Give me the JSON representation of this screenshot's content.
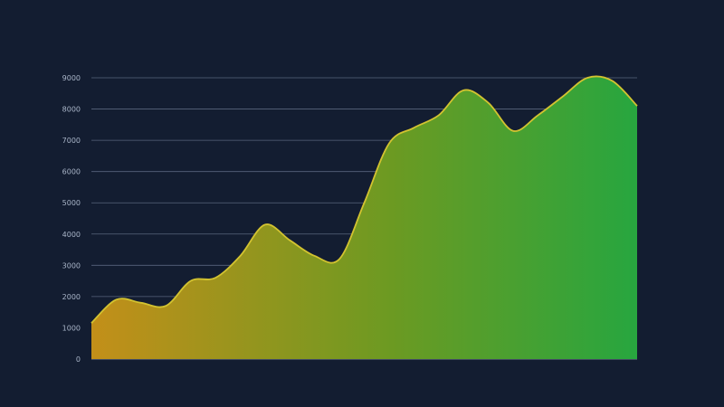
{
  "chart_data": {
    "type": "area",
    "title": "",
    "xlabel": "",
    "ylabel": "",
    "x": [
      0,
      1,
      2,
      3,
      4,
      5,
      6,
      7,
      8,
      9,
      10,
      11,
      12,
      13,
      14,
      15,
      16,
      17,
      18,
      19,
      20,
      21,
      22
    ],
    "series": [
      {
        "values": [
          1150,
          1900,
          1800,
          1700,
          2500,
          2600,
          3300,
          4300,
          3800,
          3300,
          3200,
          5000,
          6900,
          7400,
          7800,
          8600,
          8200,
          7300,
          7800,
          8400,
          9000,
          8900,
          8100
        ]
      }
    ],
    "ylim": [
      0,
      9000
    ],
    "yticks": [
      0,
      1000,
      2000,
      3000,
      4000,
      5000,
      6000,
      7000,
      8000,
      9000
    ],
    "colors": {
      "background": "#131d31",
      "grid": "#59657d",
      "outline": "#d3c330",
      "fill_left": "#c38f19",
      "fill_mid": "#6c9a22",
      "fill_right": "#27a63f"
    }
  }
}
